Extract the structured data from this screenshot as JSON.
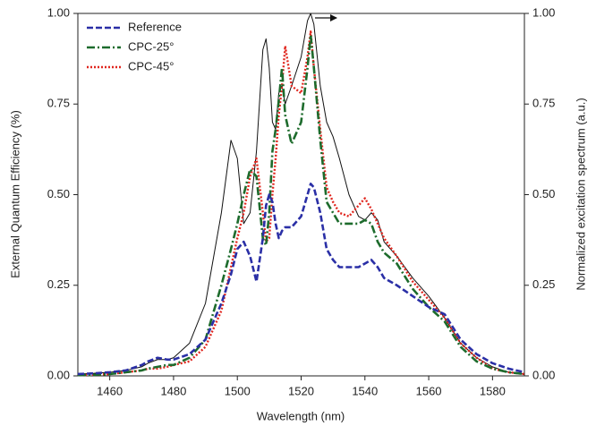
{
  "chart_data": {
    "type": "line",
    "x_label": "Wavelength (nm)",
    "y_label": "External Quantum Efficiency (%)",
    "y2_label": "Normalized excitation spectrum (a.u.)",
    "x": [
      1450,
      1455,
      1460,
      1465,
      1470,
      1472,
      1475,
      1478,
      1480,
      1485,
      1490,
      1495,
      1498,
      1500,
      1502,
      1504,
      1506,
      1508,
      1509,
      1510,
      1511,
      1512,
      1513,
      1514,
      1515,
      1517,
      1520,
      1522,
      1523,
      1524,
      1526,
      1528,
      1530,
      1532,
      1535,
      1538,
      1540,
      1542,
      1544,
      1546,
      1550,
      1555,
      1560,
      1565,
      1570,
      1575,
      1580,
      1585,
      1590
    ],
    "series": [
      {
        "name": "Reference",
        "color": "#2a2fa6",
        "dash": "dashed",
        "values": [
          0.005,
          0.007,
          0.01,
          0.015,
          0.03,
          0.04,
          0.05,
          0.045,
          0.045,
          0.06,
          0.1,
          0.2,
          0.28,
          0.35,
          0.37,
          0.33,
          0.26,
          0.38,
          0.47,
          0.5,
          0.48,
          0.42,
          0.38,
          0.4,
          0.41,
          0.41,
          0.44,
          0.5,
          0.53,
          0.52,
          0.45,
          0.35,
          0.32,
          0.3,
          0.3,
          0.3,
          0.31,
          0.32,
          0.3,
          0.27,
          0.25,
          0.22,
          0.19,
          0.17,
          0.1,
          0.06,
          0.035,
          0.02,
          0.01
        ]
      },
      {
        "name": "CPC-25°",
        "color": "#1d6b2c",
        "dash": "dashdot",
        "values": [
          0.002,
          0.003,
          0.005,
          0.01,
          0.015,
          0.02,
          0.025,
          0.03,
          0.03,
          0.05,
          0.1,
          0.25,
          0.35,
          0.42,
          0.5,
          0.57,
          0.55,
          0.38,
          0.36,
          0.45,
          0.62,
          0.68,
          0.76,
          0.85,
          0.72,
          0.64,
          0.7,
          0.85,
          0.94,
          0.85,
          0.65,
          0.48,
          0.45,
          0.42,
          0.42,
          0.42,
          0.43,
          0.42,
          0.37,
          0.34,
          0.31,
          0.24,
          0.19,
          0.15,
          0.08,
          0.04,
          0.02,
          0.01,
          0.005
        ]
      },
      {
        "name": "CPC-45°",
        "color": "#e0261e",
        "dash": "dotted",
        "values": [
          0.002,
          0.003,
          0.005,
          0.01,
          0.015,
          0.02,
          0.02,
          0.025,
          0.03,
          0.04,
          0.08,
          0.18,
          0.3,
          0.38,
          0.45,
          0.55,
          0.6,
          0.45,
          0.37,
          0.38,
          0.5,
          0.6,
          0.72,
          0.8,
          0.91,
          0.8,
          0.78,
          0.88,
          0.95,
          0.85,
          0.68,
          0.52,
          0.48,
          0.45,
          0.44,
          0.47,
          0.49,
          0.46,
          0.42,
          0.38,
          0.33,
          0.26,
          0.21,
          0.16,
          0.09,
          0.05,
          0.02,
          0.01,
          0.005
        ]
      },
      {
        "color": "#111111",
        "dash": "solid",
        "axis": "y2",
        "values": [
          0.005,
          0.007,
          0.01,
          0.015,
          0.025,
          0.035,
          0.045,
          0.045,
          0.05,
          0.09,
          0.2,
          0.45,
          0.65,
          0.6,
          0.42,
          0.45,
          0.62,
          0.9,
          0.93,
          0.85,
          0.7,
          0.68,
          0.78,
          0.8,
          0.75,
          0.8,
          0.88,
          0.98,
          1.0,
          0.97,
          0.8,
          0.7,
          0.66,
          0.6,
          0.5,
          0.44,
          0.43,
          0.45,
          0.43,
          0.37,
          0.33,
          0.27,
          0.22,
          0.16,
          0.09,
          0.05,
          0.025,
          0.01,
          0.005
        ]
      }
    ],
    "xlim": [
      1450,
      1590
    ],
    "xticks": [
      1460,
      1480,
      1500,
      1520,
      1540,
      1560,
      1580
    ],
    "ylim": [
      0,
      1
    ],
    "yticks": [
      {
        "value": 0,
        "label": "0.00"
      },
      {
        "value": 0.25,
        "label": "0.25"
      },
      {
        "value": 0.5,
        "label": "0.50"
      },
      {
        "value": 0.75,
        "label": "0.75"
      },
      {
        "value": 1,
        "label": "1.00"
      }
    ],
    "y2lim": [
      0,
      1
    ],
    "y2ticks": [
      {
        "value": 0,
        "label": "0.00"
      },
      {
        "value": 0.25,
        "label": "0.25"
      },
      {
        "value": 0.5,
        "label": "0.50"
      },
      {
        "value": 0.75,
        "label": "0.75"
      },
      {
        "value": 1,
        "label": "1.00"
      }
    ],
    "grid": false,
    "legend": "upper left"
  }
}
